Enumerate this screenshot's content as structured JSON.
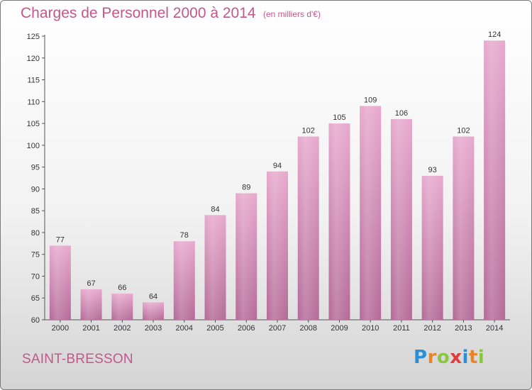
{
  "chart_data": {
    "type": "bar",
    "title": "Charges de Personnel 2000 à 2014",
    "subtitle": "(en milliers d'€)",
    "categories": [
      "2000",
      "2001",
      "2002",
      "2003",
      "2004",
      "2005",
      "2006",
      "2007",
      "2008",
      "2009",
      "2010",
      "2011",
      "2012",
      "2013",
      "2014"
    ],
    "values": [
      77,
      67,
      66,
      64,
      78,
      84,
      89,
      94,
      102,
      105,
      109,
      106,
      93,
      102,
      124
    ],
    "ylim": [
      60,
      125
    ],
    "yticks": [
      60,
      65,
      70,
      75,
      80,
      85,
      90,
      95,
      100,
      105,
      110,
      115,
      120,
      125
    ],
    "grid": false,
    "colors": {
      "bar_top": "#e7a8cd",
      "bar_bottom": "#b46a97",
      "text_accent": "#c4578a"
    }
  },
  "footer": {
    "town": "SAINT-BRESSON",
    "logo": "Proxiti",
    "logo_colors": [
      "#2a8fd6",
      "#e8852a",
      "#8bc63f",
      "#e23b3b",
      "#2a8fd6",
      "#e8852a",
      "#8bc63f"
    ]
  }
}
